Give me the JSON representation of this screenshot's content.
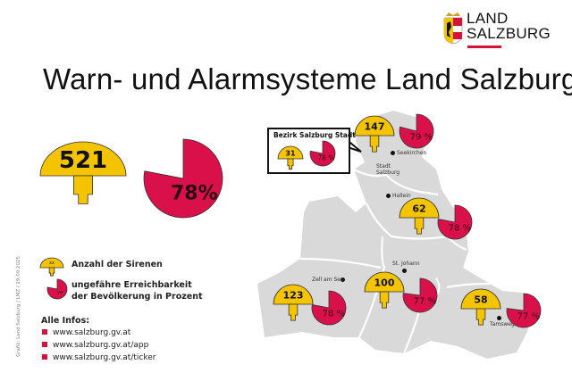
{
  "title": "Warn- und Alarmsysteme Land Salzburg",
  "logo": {
    "line1": "LAND",
    "line2": "SALZBURG"
  },
  "colors": {
    "siren": "#f5c400",
    "reach": "#d9104a",
    "map": "#d9d9d9",
    "accent": "#d6113a"
  },
  "total": {
    "sirens": "521",
    "reach": "78%",
    "reach_fraction": 0.78
  },
  "legend": {
    "siren_placeholder": "xx",
    "siren_label": "Anzahl der Sirenen",
    "reach_placeholder": "yy",
    "reach_label_line1": "ungefähre Erreichbarkeit",
    "reach_label_line2": "der Bevölkerung in Prozent"
  },
  "infos": {
    "heading": "Alle Infos:",
    "links": [
      "www.salzburg.gv.at",
      "www.salzburg.gv.at/app",
      "www.salzburg.gv.at/ticker"
    ]
  },
  "credit": "Grafik: Land Salzburg / LMZ / 29.09.2025",
  "callout": {
    "title": "Bezirk Salzburg Stadt",
    "sirens": "31",
    "reach": "78 %",
    "reach_fraction": 0.78
  },
  "regions": [
    {
      "sirens": "147",
      "reach": "79 %",
      "reach_fraction": 0.79
    },
    {
      "sirens": "62",
      "reach": "78 %",
      "reach_fraction": 0.78
    },
    {
      "sirens": "100",
      "reach": "77 %",
      "reach_fraction": 0.77
    },
    {
      "sirens": "123",
      "reach": "78 %",
      "reach_fraction": 0.78
    },
    {
      "sirens": "58",
      "reach": "77 %",
      "reach_fraction": 0.77
    }
  ],
  "towns": [
    "Seekirchen",
    "Stadt",
    "Salzburg",
    "Hallein",
    "St. Johann",
    "Zell am See",
    "Tamsweg"
  ]
}
